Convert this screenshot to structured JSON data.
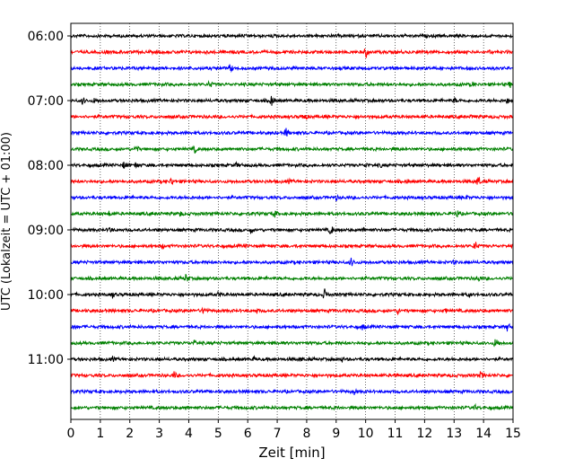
{
  "chart_data": {
    "type": "line",
    "subtype": "helicorder-seismogram",
    "title": "",
    "xlabel": "Zeit  [min]",
    "ylabel": "UTC (Lokalzeit = UTC + 01:00)",
    "xlim": [
      0,
      15
    ],
    "xticks": [
      "0",
      "1",
      "2",
      "3",
      "4",
      "5",
      "6",
      "7",
      "8",
      "9",
      "10",
      "11",
      "12",
      "13",
      "14",
      "15"
    ],
    "row_interval_min": 15,
    "start_time": "06:00",
    "row_count": 24,
    "hour_labels": [
      "06:00",
      "07:00",
      "08:00",
      "09:00",
      "10:00",
      "11:00"
    ],
    "colors": [
      "#000000",
      "#ff0000",
      "#0000ff",
      "#008000"
    ],
    "grid": "vertical-dotted",
    "events": [
      [],
      [
        {
          "x": 1.2,
          "a": 0.4
        },
        {
          "x": 10.0,
          "a": 1.0
        },
        {
          "x": 14.2,
          "a": 0.4
        }
      ],
      [
        {
          "x": 5.4,
          "a": 0.8
        }
      ],
      [
        {
          "x": 4.7,
          "a": 0.7
        },
        {
          "x": 13.6,
          "a": 0.6
        },
        {
          "x": 14.9,
          "a": 0.6
        }
      ],
      [
        {
          "x": 0.4,
          "a": 0.7
        },
        {
          "x": 0.8,
          "a": 0.6
        },
        {
          "x": 6.8,
          "a": 0.9
        },
        {
          "x": 13.0,
          "a": 0.6
        },
        {
          "x": 14.8,
          "a": 0.6
        }
      ],
      [
        {
          "x": 7.9,
          "a": 0.8
        },
        {
          "x": 13.6,
          "a": 0.5
        }
      ],
      [
        {
          "x": 7.3,
          "a": 0.9
        }
      ],
      [
        {
          "x": 2.2,
          "a": 0.8
        },
        {
          "x": 4.2,
          "a": 0.7
        }
      ],
      [
        {
          "x": 1.8,
          "a": 0.7
        },
        {
          "x": 2.2,
          "a": 0.6
        },
        {
          "x": 5.6,
          "a": 0.5
        },
        {
          "x": 10.0,
          "a": 0.6
        },
        {
          "x": 10.5,
          "a": 0.5
        }
      ],
      [
        {
          "x": 3.4,
          "a": 0.7
        },
        {
          "x": 7.4,
          "a": 0.5
        },
        {
          "x": 11.4,
          "a": 0.5
        },
        {
          "x": 13.8,
          "a": 0.9
        }
      ],
      [
        {
          "x": 9.0,
          "a": 0.5
        },
        {
          "x": 13.4,
          "a": 0.5
        }
      ],
      [
        {
          "x": 1.3,
          "a": 0.5
        },
        {
          "x": 3.7,
          "a": 0.6
        },
        {
          "x": 6.9,
          "a": 0.7
        },
        {
          "x": 13.1,
          "a": 0.7
        }
      ],
      [
        {
          "x": 1.3,
          "a": 0.6
        },
        {
          "x": 6.1,
          "a": 0.6
        },
        {
          "x": 8.8,
          "a": 0.9
        },
        {
          "x": 9.9,
          "a": 0.5
        }
      ],
      [
        {
          "x": 3.1,
          "a": 0.5
        },
        {
          "x": 5.9,
          "a": 0.4
        },
        {
          "x": 7.7,
          "a": 0.4
        },
        {
          "x": 13.7,
          "a": 0.9
        }
      ],
      [
        {
          "x": 9.5,
          "a": 0.8
        },
        {
          "x": 13.0,
          "a": 0.5
        }
      ],
      [
        {
          "x": 3.9,
          "a": 0.8
        },
        {
          "x": 13.8,
          "a": 0.7
        }
      ],
      [
        {
          "x": 1.4,
          "a": 0.7
        },
        {
          "x": 5.0,
          "a": 0.6
        },
        {
          "x": 8.6,
          "a": 1.0
        },
        {
          "x": 13.5,
          "a": 0.6
        }
      ],
      [
        {
          "x": 4.5,
          "a": 0.8
        },
        {
          "x": 6.3,
          "a": 0.5
        },
        {
          "x": 11.1,
          "a": 0.6
        },
        {
          "x": 12.7,
          "a": 0.5
        }
      ],
      [
        {
          "x": 0.1,
          "a": 0.7
        },
        {
          "x": 9.9,
          "a": 0.6
        },
        {
          "x": 14.8,
          "a": 0.8
        }
      ],
      [
        {
          "x": 4.2,
          "a": 0.6
        },
        {
          "x": 14.4,
          "a": 0.9
        }
      ],
      [
        {
          "x": 1.4,
          "a": 0.6
        },
        {
          "x": 6.2,
          "a": 0.5
        },
        {
          "x": 7.8,
          "a": 0.5
        },
        {
          "x": 9.2,
          "a": 0.5
        }
      ],
      [
        {
          "x": 3.5,
          "a": 0.7
        },
        {
          "x": 11.0,
          "a": 0.5
        },
        {
          "x": 13.9,
          "a": 0.7
        }
      ],
      [
        {
          "x": 9.6,
          "a": 0.6
        }
      ],
      [
        {
          "x": 3.9,
          "a": 0.5
        },
        {
          "x": 13.7,
          "a": 0.6
        }
      ]
    ]
  }
}
